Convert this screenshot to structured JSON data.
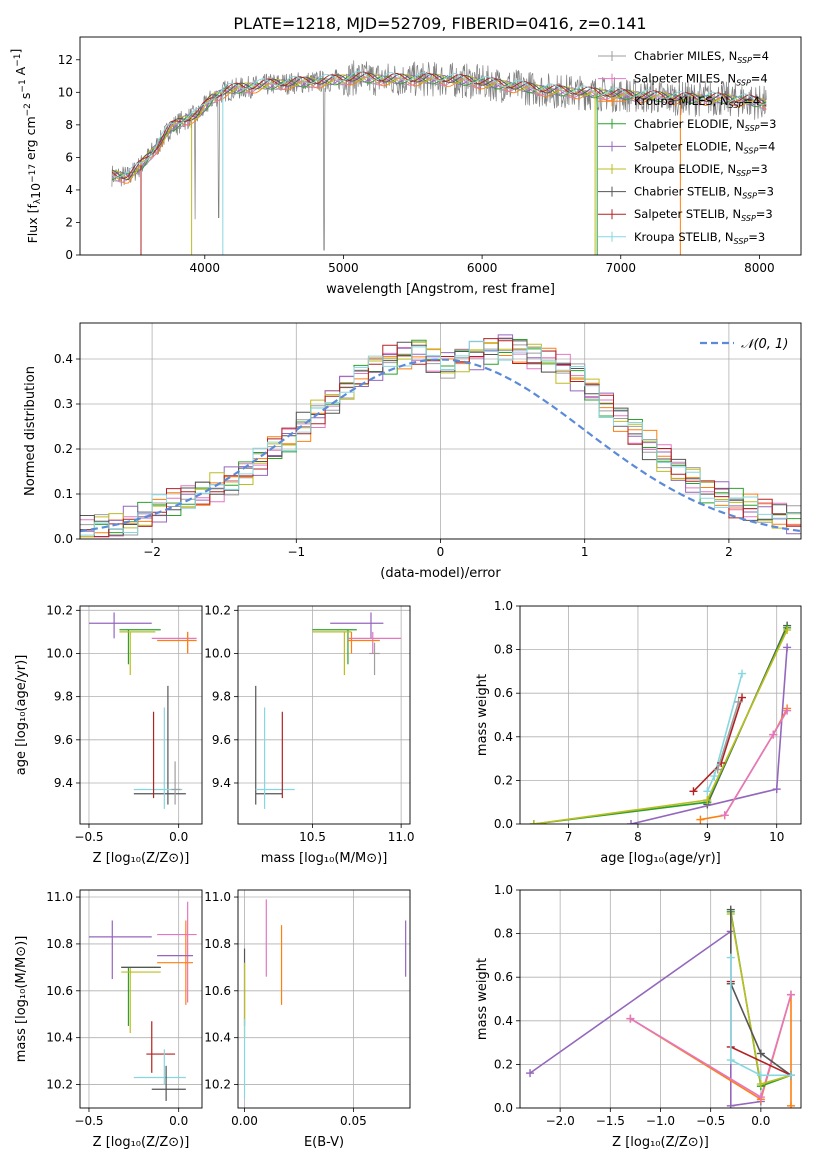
{
  "title": "PLATE=1218, MJD=52709, FIBERID=0416, z=0.141",
  "colors": {
    "ChabM": "#9e9e9e",
    "SalpM": "#e377c2",
    "KrouM": "#ff7f0e",
    "ChabE": "#2ca02c",
    "SalpE": "#9467bd",
    "KrouE": "#bcbd22",
    "ChabS": "#555555",
    "SalpS": "#b22222",
    "KrouS": "#86d7e0",
    "normal": "#5b8bd8",
    "spec": "#7f7f7f"
  },
  "chart_data": [
    {
      "type": "line",
      "name": "spectrum",
      "xlabel": "wavelength [Angstrom, rest frame]",
      "ylabel": "Flux [f_λ10^{-17} erg cm^{-2} s^{-1} A^{-1}]",
      "xlim": [
        3100,
        8300
      ],
      "ylim": [
        0,
        13.4
      ],
      "xticks": [
        4000,
        5000,
        6000,
        7000,
        8000
      ],
      "yticks": [
        0,
        2,
        4,
        6,
        8,
        10,
        12
      ],
      "grid": false,
      "legend_position": "right",
      "legend": [
        {
          "label": "Chabrier MILES, N",
          "sub": "SSP",
          "val": "=4",
          "color": "ChabM"
        },
        {
          "label": "Salpeter MILES, N",
          "sub": "SSP",
          "val": "=4",
          "color": "SalpM"
        },
        {
          "label": "Kroupa MILES, N",
          "sub": "SSP",
          "val": "=4",
          "color": "KrouM"
        },
        {
          "label": "Chabrier ELODIE, N",
          "sub": "SSP",
          "val": "=3",
          "color": "ChabE"
        },
        {
          "label": "Salpeter ELODIE, N",
          "sub": "SSP",
          "val": "=4",
          "color": "SalpE"
        },
        {
          "label": "Kroupa ELODIE, N",
          "sub": "SSP",
          "val": "=3",
          "color": "KrouE"
        },
        {
          "label": "Chabrier STELIB, N",
          "sub": "SSP",
          "val": "=3",
          "color": "ChabS"
        },
        {
          "label": "Salpeter STELIB, N",
          "sub": "SSP",
          "val": "=3",
          "color": "SalpS"
        },
        {
          "label": "Kroupa STELIB, N",
          "sub": "SSP",
          "val": "=3",
          "color": "KrouS"
        }
      ],
      "continuum": [
        [
          3330,
          4.9
        ],
        [
          3450,
          4.8
        ],
        [
          3550,
          5.6
        ],
        [
          3650,
          6.6
        ],
        [
          3750,
          7.8
        ],
        [
          3850,
          8.3
        ],
        [
          3950,
          8.6
        ],
        [
          4050,
          9.6
        ],
        [
          4150,
          10.1
        ],
        [
          4300,
          10.3
        ],
        [
          4500,
          10.5
        ],
        [
          4700,
          10.6
        ],
        [
          4900,
          10.7
        ],
        [
          5100,
          10.9
        ],
        [
          5300,
          10.8
        ],
        [
          5500,
          10.8
        ],
        [
          5700,
          10.8
        ],
        [
          5900,
          10.7
        ],
        [
          6100,
          10.5
        ],
        [
          6300,
          10.3
        ],
        [
          6500,
          10.1
        ],
        [
          6700,
          10.0
        ],
        [
          6900,
          9.9
        ],
        [
          7100,
          9.8
        ],
        [
          7300,
          9.7
        ],
        [
          7500,
          9.6
        ],
        [
          7700,
          9.6
        ],
        [
          7900,
          9.5
        ],
        [
          8050,
          9.3
        ]
      ],
      "model_drops": [
        {
          "color": "SalpS",
          "x": 3540
        },
        {
          "color": "KrouE",
          "x": 3905
        },
        {
          "color": "KrouS",
          "x": 4130
        },
        {
          "color": "KrouE",
          "x": 6815
        },
        {
          "color": "ChabE",
          "x": 6830
        },
        {
          "color": "KrouM",
          "x": 7430
        }
      ]
    },
    {
      "type": "histogram",
      "name": "residuals",
      "xlabel": "(data-model)/error",
      "ylabel": "Normed distribution",
      "xlim": [
        -2.5,
        2.5
      ],
      "ylim": [
        0,
        0.48
      ],
      "xticks": [
        -2,
        -1,
        0,
        1,
        2
      ],
      "yticks": [
        0,
        0.1,
        0.2,
        0.3,
        0.4
      ],
      "grid": true,
      "legend_position": "top-right",
      "normal_label": "𝒩(0, 1)",
      "bin_edges_start": -2.5,
      "bin_width": 0.1,
      "base_hist": [
        0.02,
        0.025,
        0.03,
        0.04,
        0.05,
        0.065,
        0.08,
        0.09,
        0.1,
        0.115,
        0.13,
        0.15,
        0.17,
        0.2,
        0.22,
        0.25,
        0.28,
        0.31,
        0.34,
        0.36,
        0.38,
        0.4,
        0.41,
        0.42,
        0.4,
        0.39,
        0.4,
        0.41,
        0.42,
        0.43,
        0.42,
        0.41,
        0.4,
        0.38,
        0.36,
        0.33,
        0.3,
        0.27,
        0.24,
        0.21,
        0.18,
        0.15,
        0.13,
        0.11,
        0.1,
        0.08,
        0.07,
        0.06,
        0.05,
        0.04
      ],
      "series_colors": [
        "ChabM",
        "SalpM",
        "KrouM",
        "ChabE",
        "SalpE",
        "KrouE",
        "ChabS",
        "SalpS",
        "KrouS"
      ]
    },
    {
      "type": "errorbar",
      "name": "age-vs-Z",
      "xlabel": "Z [log₁₀(Z/Z⊙)]",
      "ylabel": "age  [log₁₀(age/yr)]",
      "xlim": [
        -0.55,
        0.13
      ],
      "ylim": [
        9.21,
        10.22
      ],
      "xticks": [
        -0.5,
        0.0
      ],
      "xticklabels": [
        "−0.5",
        "0.0"
      ],
      "yticks": [
        9.4,
        9.6,
        9.8,
        10.0,
        10.2
      ],
      "grid": true,
      "points": [
        {
          "c": "SalpE",
          "x": -0.36,
          "xe": [
            -0.5,
            -0.15
          ],
          "y": 10.14,
          "ye": [
            10.07,
            10.19
          ]
        },
        {
          "c": "ChabE",
          "x": -0.28,
          "xe": [
            -0.33,
            -0.1
          ],
          "y": 10.11,
          "ye": [
            9.95,
            10.11
          ]
        },
        {
          "c": "KrouE",
          "x": -0.27,
          "xe": [
            -0.33,
            -0.13
          ],
          "y": 10.1,
          "ye": [
            9.9,
            10.1
          ]
        },
        {
          "c": "SalpM",
          "x": 0.05,
          "xe": [
            -0.15,
            0.1
          ],
          "y": 10.07,
          "ye": [
            10.0,
            10.1
          ]
        },
        {
          "c": "KrouM",
          "x": 0.05,
          "xe": [
            -0.12,
            0.1
          ],
          "y": 10.06,
          "ye": [
            10.0,
            10.1
          ]
        },
        {
          "c": "ChabS",
          "x": -0.06,
          "xe": [
            -0.25,
            0.04
          ],
          "y": 9.35,
          "ye": [
            9.3,
            9.85
          ]
        },
        {
          "c": "KrouS",
          "x": -0.08,
          "xe": [
            -0.25,
            0.02
          ],
          "y": 9.37,
          "ye": [
            9.28,
            9.75
          ]
        },
        {
          "c": "SalpS",
          "x": -0.14,
          "xe": [
            -0.14,
            -0.14
          ],
          "y": 9.5,
          "ye": [
            9.33,
            9.73
          ]
        },
        {
          "c": "ChabM",
          "x": -0.02,
          "xe": [
            -0.04,
            0.01
          ],
          "y": 9.37,
          "ye": [
            9.3,
            9.5
          ]
        }
      ]
    },
    {
      "type": "errorbar",
      "name": "age-vs-mass",
      "xlabel": "mass [log₁₀(M/M⊙)]",
      "ylabel": "",
      "xlim": [
        10.08,
        11.05
      ],
      "ylim": [
        9.21,
        10.22
      ],
      "xticks": [
        10.5,
        11.0
      ],
      "yticks": [
        9.4,
        9.6,
        9.8,
        10.0,
        10.2
      ],
      "grid": true,
      "points": [
        {
          "c": "SalpE",
          "x": 10.83,
          "xe": [
            10.6,
            10.9
          ],
          "y": 10.14,
          "ye": [
            10.07,
            10.19
          ]
        },
        {
          "c": "ChabE",
          "x": 10.7,
          "xe": [
            10.5,
            10.75
          ],
          "y": 10.11,
          "ye": [
            9.95,
            10.11
          ]
        },
        {
          "c": "KrouE",
          "x": 10.68,
          "xe": [
            10.5,
            10.72
          ],
          "y": 10.1,
          "ye": [
            9.9,
            10.1
          ]
        },
        {
          "c": "SalpM",
          "x": 10.84,
          "xe": [
            10.7,
            11.0
          ],
          "y": 10.07,
          "ye": [
            10.0,
            10.1
          ]
        },
        {
          "c": "KrouM",
          "x": 10.72,
          "xe": [
            10.7,
            10.88
          ],
          "y": 10.06,
          "ye": [
            10.0,
            10.1
          ]
        },
        {
          "c": "ChabS",
          "x": 10.18,
          "xe": [
            10.18,
            10.33
          ],
          "y": 9.35,
          "ye": [
            9.3,
            9.85
          ]
        },
        {
          "c": "KrouS",
          "x": 10.23,
          "xe": [
            10.18,
            10.4
          ],
          "y": 9.37,
          "ye": [
            9.28,
            9.75
          ]
        },
        {
          "c": "SalpS",
          "x": 10.33,
          "xe": [
            10.33,
            10.33
          ],
          "y": 9.5,
          "ye": [
            9.33,
            9.73
          ]
        },
        {
          "c": "ChabM",
          "x": 10.85,
          "xe": [
            10.82,
            10.88
          ],
          "y": 10.0,
          "ye": [
            9.9,
            10.05
          ]
        }
      ]
    },
    {
      "type": "line",
      "name": "massweight-vs-age",
      "xlabel": "age  [log₁₀(age/yr)]",
      "ylabel": "mass weight",
      "xlim": [
        6.3,
        10.35
      ],
      "ylim": [
        0,
        1.0
      ],
      "xticks": [
        7,
        8,
        9,
        10
      ],
      "yticks": [
        0,
        0.2,
        0.4,
        0.6,
        0.8,
        1.0
      ],
      "grid": true,
      "series": [
        {
          "c": "ChabS",
          "x": [
            9.0,
            10.15
          ],
          "y": [
            0.09,
            0.91
          ]
        },
        {
          "c": "ChabE",
          "x": [
            6.5,
            9.0,
            10.15
          ],
          "y": [
            0.0,
            0.1,
            0.9
          ]
        },
        {
          "c": "KrouE",
          "x": [
            6.5,
            9.0,
            10.15
          ],
          "y": [
            0.0,
            0.11,
            0.89
          ]
        },
        {
          "c": "KrouS",
          "x": [
            9.0,
            9.1,
            9.5
          ],
          "y": [
            0.15,
            0.22,
            0.69
          ]
        },
        {
          "c": "SalpS",
          "x": [
            8.8,
            9.2,
            9.5
          ],
          "y": [
            0.15,
            0.28,
            0.58
          ]
        },
        {
          "c": "ChabM",
          "x": [
            9.15,
            9.45
          ],
          "y": [
            0.25,
            0.56
          ]
        },
        {
          "c": "SalpE",
          "x": [
            7.9,
            10.0,
            10.15
          ],
          "y": [
            0.0,
            0.16,
            0.81
          ]
        },
        {
          "c": "KrouM",
          "x": [
            8.9,
            9.25,
            9.95,
            10.15
          ],
          "y": [
            0.02,
            0.04,
            0.41,
            0.53
          ]
        },
        {
          "c": "SalpM",
          "x": [
            9.25,
            9.95,
            10.15
          ],
          "y": [
            0.04,
            0.41,
            0.52
          ]
        }
      ]
    },
    {
      "type": "errorbar",
      "name": "mass-vs-Z",
      "xlabel": "Z [log₁₀(Z/Z⊙)]",
      "ylabel": "mass [log₁₀(M/M⊙)]",
      "xlim": [
        -0.55,
        0.13
      ],
      "ylim": [
        10.1,
        11.03
      ],
      "xticks": [
        -0.5,
        0.0
      ],
      "xticklabels": [
        "−0.5",
        "0.0"
      ],
      "yticks": [
        10.2,
        10.4,
        10.6,
        10.8,
        11.0
      ],
      "grid": true,
      "points": [
        {
          "c": "SalpE",
          "x": -0.37,
          "xe": [
            -0.5,
            -0.15
          ],
          "y": 10.83,
          "ye": [
            10.65,
            10.9
          ]
        },
        {
          "c": "SalpM",
          "x": 0.05,
          "xe": [
            -0.12,
            0.1
          ],
          "y": 10.84,
          "ye": [
            10.55,
            10.98
          ]
        },
        {
          "c": "ChabE",
          "x": -0.28,
          "xe": [
            -0.32,
            -0.1
          ],
          "y": 10.7,
          "ye": [
            10.45,
            10.7
          ]
        },
        {
          "c": "KrouE",
          "x": -0.27,
          "xe": [
            -0.32,
            -0.1
          ],
          "y": 10.68,
          "ye": [
            10.42,
            10.7
          ]
        },
        {
          "c": "ChabS",
          "x": -0.27,
          "xe": [
            -0.32,
            -0.1
          ],
          "y": 10.7,
          "ye": [
            10.7,
            10.7
          ]
        },
        {
          "c": "KrouM",
          "x": 0.04,
          "xe": [
            -0.12,
            0.08
          ],
          "y": 10.72,
          "ye": [
            10.54,
            10.9
          ]
        },
        {
          "c": "SalpE",
          "x": 0.0,
          "xe": [
            -0.12,
            0.08
          ],
          "y": 10.75,
          "ye": [
            10.75,
            10.75
          ]
        },
        {
          "c": "SalpS",
          "x": -0.15,
          "xe": [
            -0.18,
            -0.02
          ],
          "y": 10.33,
          "ye": [
            10.25,
            10.47
          ]
        },
        {
          "c": "KrouS",
          "x": -0.08,
          "xe": [
            -0.25,
            0.04
          ],
          "y": 10.23,
          "ye": [
            10.2,
            10.35
          ]
        },
        {
          "c": "ChabS",
          "x": -0.07,
          "xe": [
            -0.15,
            0.04
          ],
          "y": 10.18,
          "ye": [
            10.13,
            10.28
          ]
        }
      ]
    },
    {
      "type": "errorbar",
      "name": "mass-vs-EBV",
      "xlabel": "E(B-V)",
      "ylabel": "",
      "xlim": [
        -0.003,
        0.076
      ],
      "ylim": [
        10.1,
        11.03
      ],
      "xticks": [
        0.0,
        0.05
      ],
      "xticklabels": [
        "0.00",
        "0.05"
      ],
      "yticks": [
        10.2,
        10.4,
        10.6,
        10.8,
        11.0
      ],
      "grid": true,
      "points": [
        {
          "c": "ChabS",
          "x": 0.0,
          "xe": [
            0.0,
            0.0
          ],
          "y": 10.65,
          "ye": [
            10.45,
            10.78
          ]
        },
        {
          "c": "KrouE",
          "x": 0.0,
          "xe": [
            0.0,
            0.0
          ],
          "y": 10.6,
          "ye": [
            10.4,
            10.72
          ]
        },
        {
          "c": "KrouS",
          "x": 0.0,
          "xe": [
            0.0,
            0.0
          ],
          "y": 10.3,
          "ye": [
            10.14,
            10.48
          ]
        },
        {
          "c": "SalpM",
          "x": 0.01,
          "xe": [
            0.01,
            0.01
          ],
          "y": 10.84,
          "ye": [
            10.66,
            10.99
          ]
        },
        {
          "c": "KrouM",
          "x": 0.017,
          "xe": [
            0.017,
            0.017
          ],
          "y": 10.72,
          "ye": [
            10.54,
            10.88
          ]
        },
        {
          "c": "SalpE",
          "x": 0.074,
          "xe": [
            0.074,
            0.074
          ],
          "y": 10.83,
          "ye": [
            10.66,
            10.9
          ]
        }
      ]
    },
    {
      "type": "line",
      "name": "massweight-vs-Z",
      "xlabel": "Z [log₁₀(Z/Z⊙)]",
      "ylabel": "mass weight",
      "xlim": [
        -2.4,
        0.4
      ],
      "ylim": [
        0,
        1.0
      ],
      "xticks": [
        -2.0,
        -1.5,
        -1.0,
        -0.5,
        0.0
      ],
      "xticklabels": [
        "−2.0",
        "−1.5",
        "−1.0",
        "−0.5",
        "0.0"
      ],
      "yticks": [
        0,
        0.2,
        0.4,
        0.6,
        0.8,
        1.0
      ],
      "grid": true,
      "series": [
        {
          "c": "SalpE",
          "x": [
            -2.3,
            -0.3,
            -0.3,
            0.0
          ],
          "y": [
            0.16,
            0.81,
            0.01,
            0.03
          ]
        },
        {
          "c": "KrouM",
          "x": [
            -1.3,
            0.0,
            0.3,
            0.3
          ],
          "y": [
            0.41,
            0.04,
            0.52,
            0.01
          ]
        },
        {
          "c": "SalpM",
          "x": [
            -1.3,
            0.0,
            0.3
          ],
          "y": [
            0.41,
            0.05,
            0.52
          ]
        },
        {
          "c": "ChabE",
          "x": [
            -0.3,
            0.0,
            0.3
          ],
          "y": [
            0.9,
            0.1,
            0.15
          ]
        },
        {
          "c": "KrouE",
          "x": [
            -0.3,
            0.0,
            0.3
          ],
          "y": [
            0.89,
            0.11,
            0.15
          ]
        },
        {
          "c": "ChabS",
          "x": [
            -0.3,
            -0.3,
            0.0,
            0.3
          ],
          "y": [
            0.91,
            0.57,
            0.25,
            0.15
          ]
        },
        {
          "c": "SalpS",
          "x": [
            -0.3,
            -0.3,
            0.3
          ],
          "y": [
            0.58,
            0.28,
            0.15
          ]
        },
        {
          "c": "KrouS",
          "x": [
            -0.3,
            -0.3,
            0.0,
            0.3
          ],
          "y": [
            0.69,
            0.22,
            0.15,
            0.15
          ]
        }
      ]
    }
  ]
}
